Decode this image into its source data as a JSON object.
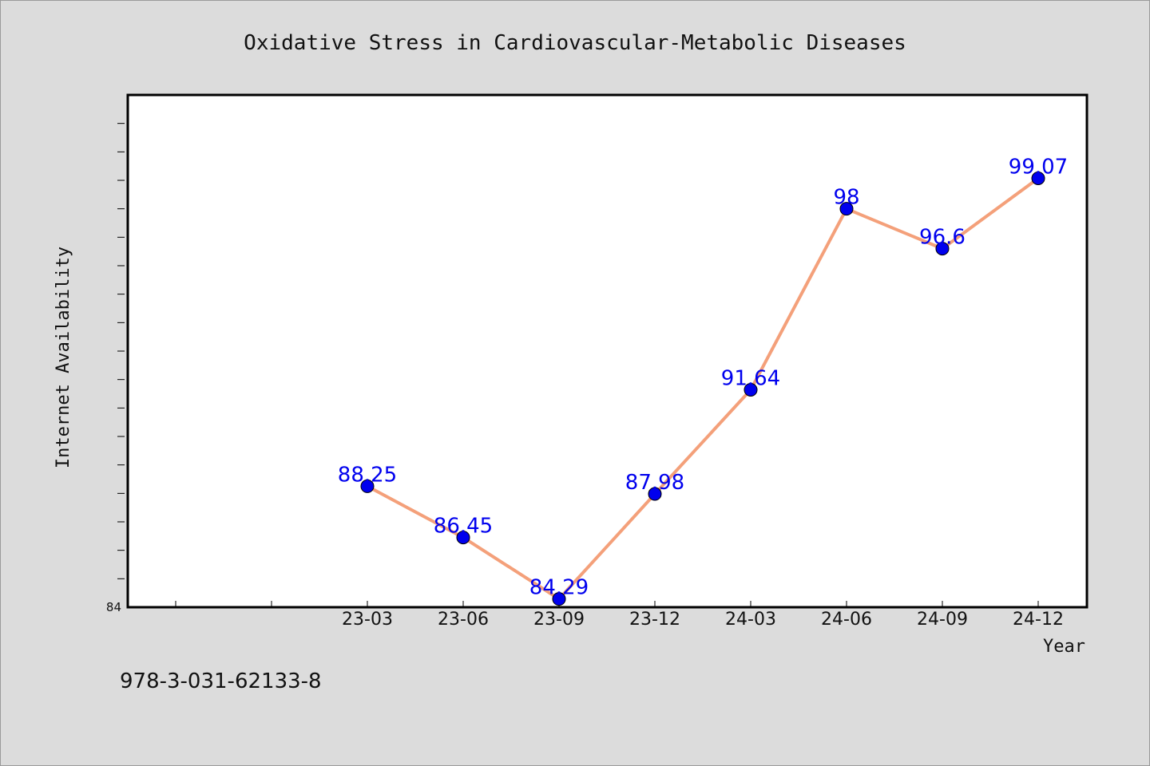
{
  "chart_data": {
    "type": "line",
    "title": "Oxidative Stress in Cardiovascular-Metabolic Diseases",
    "xlabel": "Year",
    "ylabel": "Internet Availability",
    "categories": [
      "23-03",
      "23-06",
      "23-09",
      "23-12",
      "24-03",
      "24-06",
      "24-09",
      "24-12"
    ],
    "series": [
      {
        "values": [
          88.25,
          86.45,
          84.29,
          87.98,
          91.64,
          98,
          96.6,
          99.07
        ],
        "labels": [
          "88.25",
          "86.45",
          "84.29",
          "87.98",
          "91.64",
          "98",
          "96.6",
          "99.07"
        ]
      }
    ],
    "ylim": [
      84,
      102
    ],
    "ytick_labels": [
      "84"
    ],
    "grid": false,
    "legend": "none",
    "line_color": "#f4a07a",
    "marker_color": "#0000ee",
    "label_color": "#0000ee"
  },
  "footer": {
    "isbn": "978-3-031-62133-8"
  }
}
